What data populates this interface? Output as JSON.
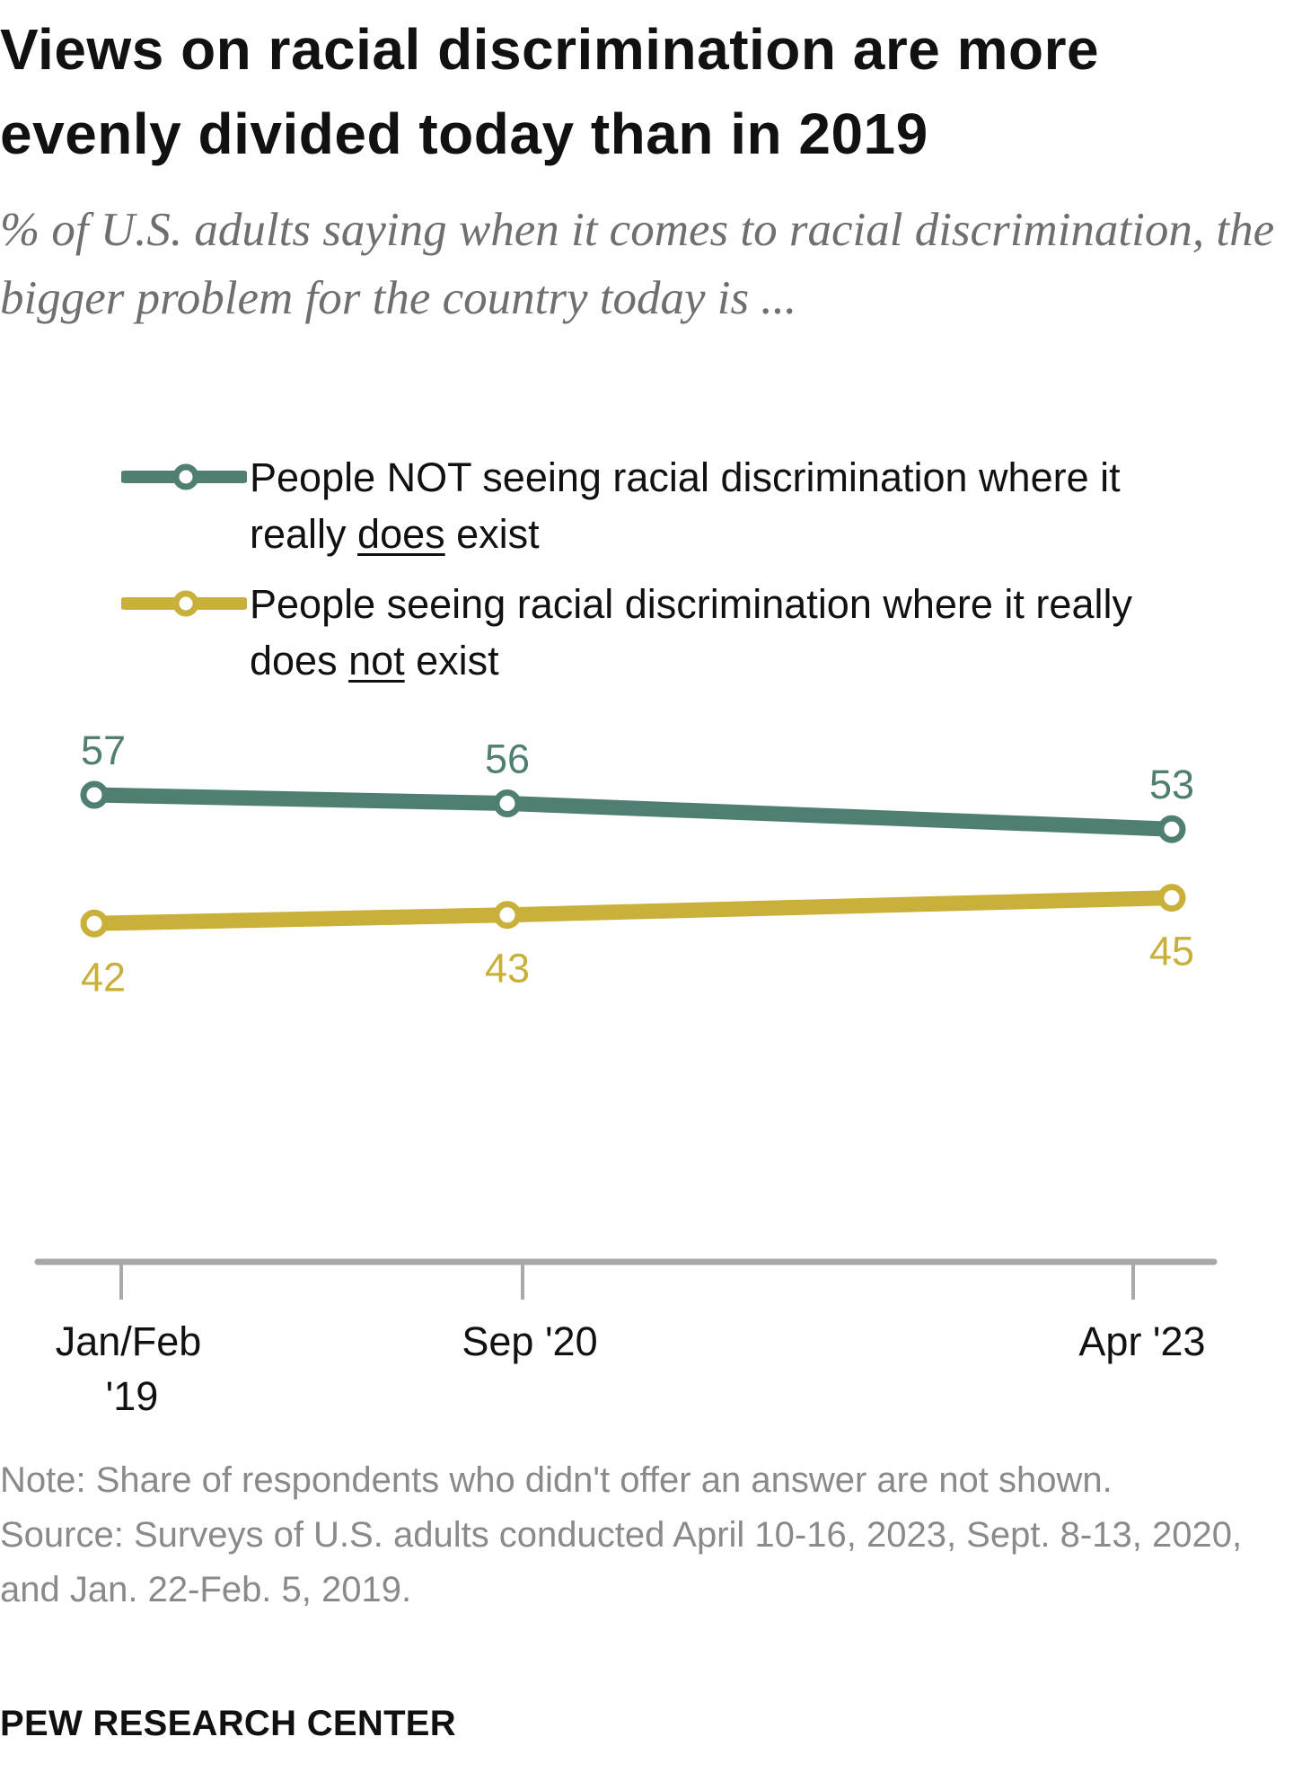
{
  "title": "Views on racial discrimination are more evenly divided today than in 2019",
  "subtitle": "% of U.S. adults saying when it comes to racial discrimination, the bigger problem for the country today is ...",
  "legend": [
    {
      "pre": "People NOT seeing racial discrimination where it really ",
      "emph": "does",
      "post": " exist",
      "color": "#4f7f72"
    },
    {
      "pre": "People seeing racial discrimination where it really does ",
      "emph": "not",
      "post": " exist",
      "color": "#c9b03a"
    }
  ],
  "chart_data": {
    "type": "line",
    "title": "Views on racial discrimination are more evenly divided today than in 2019",
    "subtitle": "% of U.S. adults saying when it comes to racial discrimination, the bigger problem for the country today is ...",
    "xlabel": "",
    "ylabel": "",
    "categories": [
      "Jan/Feb '19",
      "Sep '20",
      "Apr '23"
    ],
    "x_time_positions": [
      2019.08,
      2020.7,
      2023.29
    ],
    "series": [
      {
        "name": "People NOT seeing racial discrimination where it really does exist",
        "values": [
          57,
          56,
          53
        ],
        "color": "#4f7f72",
        "label_position": "above"
      },
      {
        "name": "People seeing racial discrimination where it really does not exist",
        "values": [
          42,
          43,
          45
        ],
        "color": "#c9b03a",
        "label_position": "below"
      }
    ],
    "ylim": [
      42,
      57
    ],
    "grid": false,
    "legend_position": "top-left",
    "axis_color": "#a8a8a8"
  },
  "tick_labels": [
    {
      "line1": "Jan/Feb",
      "line2": "'19"
    },
    {
      "line1": "Sep '20",
      "line2": ""
    },
    {
      "line1": "Apr '23",
      "line2": ""
    }
  ],
  "note": "Note: Share of respondents who didn't offer an answer are not shown.",
  "source": "Source: Surveys of U.S. adults conducted April 10-16, 2023, Sept. 8-13, 2020, and Jan. 22-Feb. 5, 2019.",
  "brand": "PEW RESEARCH CENTER"
}
